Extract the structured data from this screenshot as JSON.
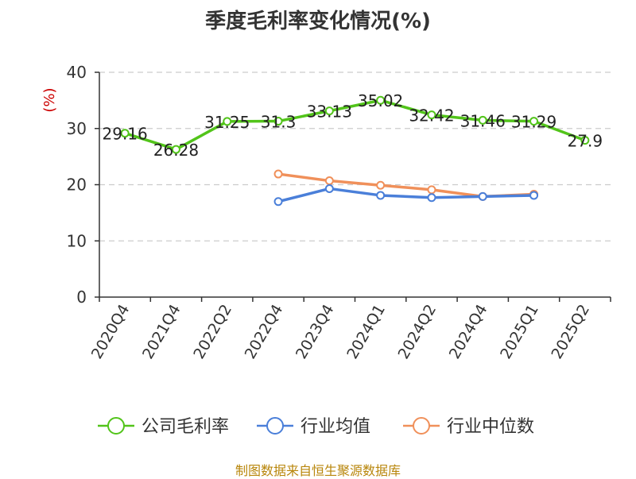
{
  "chart_data": {
    "type": "line",
    "title": "季度毛利率变化情况(%)",
    "ylabel": "(%)",
    "xlabel": "",
    "ylim": [
      0,
      40
    ],
    "yticks": [
      0,
      10,
      20,
      30,
      40
    ],
    "grid": true,
    "legend_position": "bottom",
    "categories": [
      "2020Q4",
      "2021Q4",
      "2022Q2",
      "2022Q4",
      "2023Q4",
      "2024Q1",
      "2024Q2",
      "2024Q4",
      "2025Q1",
      "2025Q2"
    ],
    "series": [
      {
        "name": "公司毛利率",
        "color": "#52c41a",
        "values": [
          29.16,
          26.28,
          31.25,
          31.3,
          33.13,
          35.02,
          32.42,
          31.46,
          31.29,
          27.9
        ],
        "labels": [
          "29.16",
          "26.28",
          "31.25",
          "31.3",
          "33.13",
          "35.02",
          "32.42",
          "31.46",
          "31.29",
          "27.9"
        ]
      },
      {
        "name": "行业均值",
        "color": "#4a7fd9",
        "values": [
          null,
          null,
          null,
          17.0,
          19.3,
          18.1,
          17.7,
          17.9,
          18.1,
          null
        ]
      },
      {
        "name": "行业中位数",
        "color": "#f0905a",
        "values": [
          null,
          null,
          null,
          21.9,
          20.7,
          19.9,
          19.1,
          17.9,
          18.3,
          null
        ]
      }
    ]
  },
  "source_note": "制图数据来自恒生聚源数据库"
}
